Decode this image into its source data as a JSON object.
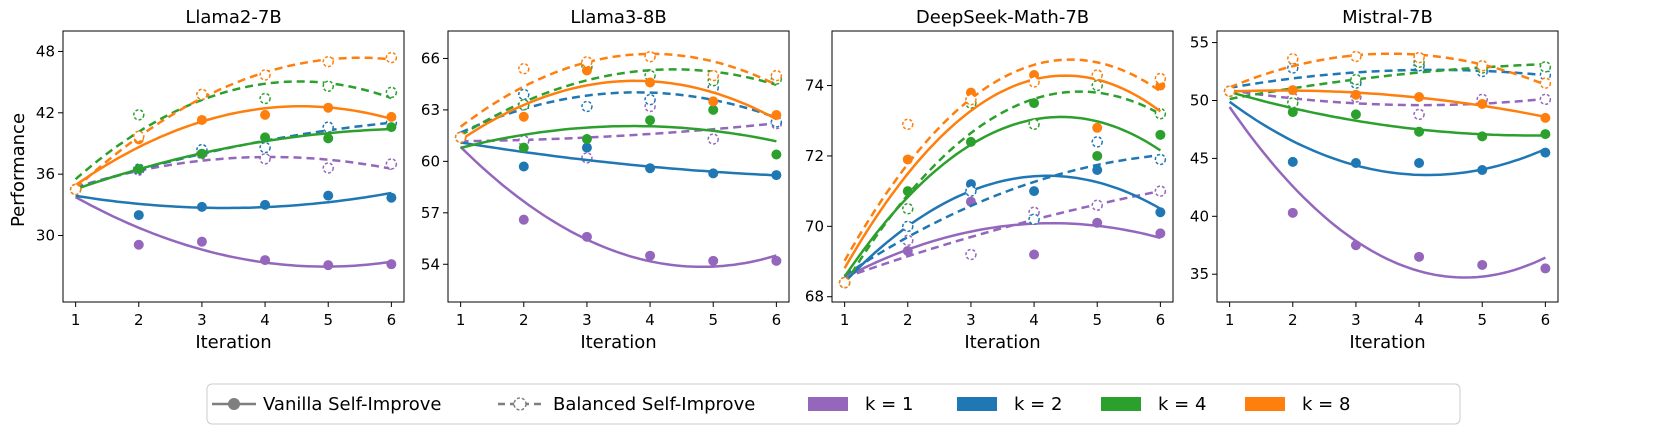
{
  "colors": {
    "k1": "#9467bd",
    "k2": "#1f77b4",
    "k4": "#2ca02c",
    "k8": "#ff7f0e",
    "neutral": "#7f7f7f"
  },
  "legend": {
    "vanilla": "Vanilla Self-Improve",
    "balanced": "Balanced Self-Improve",
    "k1": "k = 1",
    "k2": "k = 2",
    "k4": "k = 4",
    "k8": "k = 8"
  },
  "chart_data": [
    {
      "type": "scatter",
      "title": "Llama2-7B",
      "xlabel": "Iteration",
      "ylabel": "Performance",
      "x": [
        1,
        2,
        3,
        4,
        5,
        6
      ],
      "xlim": [
        0.8,
        6.2
      ],
      "ylim": [
        23.5,
        50
      ],
      "yticks": [
        30,
        36,
        42,
        48
      ],
      "series": [
        {
          "key": "k1",
          "name": "k = 1",
          "style": "vanilla",
          "values": [
            34.5,
            29.1,
            29.4,
            27.6,
            27.1,
            27.2
          ]
        },
        {
          "key": "k1",
          "name": "k = 1",
          "style": "balanced",
          "values": [
            34.5,
            36.4,
            38.0,
            37.5,
            36.6,
            37.0
          ]
        },
        {
          "key": "k2",
          "name": "k = 2",
          "style": "vanilla",
          "values": [
            34.5,
            32.0,
            32.8,
            33.0,
            33.9,
            33.7
          ]
        },
        {
          "key": "k2",
          "name": "k = 2",
          "style": "balanced",
          "values": [
            34.5,
            36.5,
            38.4,
            38.6,
            40.6,
            41.0
          ]
        },
        {
          "key": "k4",
          "name": "k = 4",
          "style": "vanilla",
          "values": [
            34.5,
            36.5,
            38.0,
            39.6,
            39.5,
            40.6
          ]
        },
        {
          "key": "k4",
          "name": "k = 4",
          "style": "balanced",
          "values": [
            34.5,
            41.8,
            43.8,
            43.4,
            44.6,
            44.0
          ]
        },
        {
          "key": "k8",
          "name": "k = 8",
          "style": "vanilla",
          "values": [
            34.5,
            39.4,
            41.3,
            41.8,
            42.5,
            41.6
          ]
        },
        {
          "key": "k8",
          "name": "k = 8",
          "style": "balanced",
          "values": [
            34.5,
            39.7,
            43.8,
            45.7,
            47.0,
            47.4
          ]
        }
      ]
    },
    {
      "type": "scatter",
      "title": "Llama3-8B",
      "xlabel": "Iteration",
      "ylabel": "",
      "x": [
        1,
        2,
        3,
        4,
        5,
        6
      ],
      "xlim": [
        0.8,
        6.2
      ],
      "ylim": [
        51.8,
        67.6
      ],
      "yticks": [
        54,
        57,
        60,
        63,
        66
      ],
      "series": [
        {
          "key": "k1",
          "name": "k = 1",
          "style": "vanilla",
          "values": [
            61.4,
            56.6,
            55.6,
            54.5,
            54.2,
            54.2
          ]
        },
        {
          "key": "k1",
          "name": "k = 1",
          "style": "balanced",
          "values": [
            61.4,
            61.2,
            60.2,
            63.2,
            61.3,
            62.2
          ]
        },
        {
          "key": "k2",
          "name": "k = 2",
          "style": "vanilla",
          "values": [
            61.4,
            59.7,
            60.8,
            59.6,
            59.3,
            59.2
          ]
        },
        {
          "key": "k2",
          "name": "k = 2",
          "style": "balanced",
          "values": [
            61.4,
            63.9,
            63.2,
            63.6,
            64.3,
            62.3
          ]
        },
        {
          "key": "k4",
          "name": "k = 4",
          "style": "vanilla",
          "values": [
            61.4,
            60.8,
            61.3,
            62.4,
            63.0,
            60.4
          ]
        },
        {
          "key": "k4",
          "name": "k = 4",
          "style": "balanced",
          "values": [
            61.4,
            63.3,
            65.5,
            65.0,
            64.7,
            64.8
          ]
        },
        {
          "key": "k8",
          "name": "k = 8",
          "style": "vanilla",
          "values": [
            61.4,
            62.6,
            65.3,
            64.6,
            63.5,
            62.7
          ]
        },
        {
          "key": "k8",
          "name": "k = 8",
          "style": "balanced",
          "values": [
            61.4,
            65.4,
            65.8,
            66.1,
            65.0,
            65.0
          ]
        }
      ]
    },
    {
      "type": "scatter",
      "title": "DeepSeek-Math-7B",
      "xlabel": "Iteration",
      "ylabel": "",
      "x": [
        1,
        2,
        3,
        4,
        5,
        6
      ],
      "xlim": [
        0.8,
        6.2
      ],
      "ylim": [
        67.85,
        75.55
      ],
      "yticks": [
        68,
        70,
        72,
        74
      ],
      "series": [
        {
          "key": "k1",
          "name": "k = 1",
          "style": "vanilla",
          "values": [
            68.4,
            69.3,
            70.7,
            69.2,
            70.1,
            69.8
          ]
        },
        {
          "key": "k1",
          "name": "k = 1",
          "style": "balanced",
          "values": [
            68.4,
            69.6,
            69.2,
            70.4,
            70.6,
            71.0
          ]
        },
        {
          "key": "k2",
          "name": "k = 2",
          "style": "vanilla",
          "values": [
            68.4,
            70.0,
            71.2,
            71.0,
            71.6,
            70.4
          ]
        },
        {
          "key": "k2",
          "name": "k = 2",
          "style": "balanced",
          "values": [
            68.4,
            70.0,
            71.0,
            70.2,
            72.4,
            71.9
          ]
        },
        {
          "key": "k4",
          "name": "k = 4",
          "style": "vanilla",
          "values": [
            68.4,
            71.0,
            72.4,
            73.5,
            72.0,
            72.6
          ]
        },
        {
          "key": "k4",
          "name": "k = 4",
          "style": "balanced",
          "values": [
            68.4,
            70.5,
            73.5,
            72.9,
            74.0,
            73.2
          ]
        },
        {
          "key": "k8",
          "name": "k = 8",
          "style": "vanilla",
          "values": [
            68.4,
            71.9,
            73.8,
            74.3,
            72.8,
            74.0
          ]
        },
        {
          "key": "k8",
          "name": "k = 8",
          "style": "balanced",
          "values": [
            68.4,
            72.9,
            73.6,
            74.1,
            74.3,
            74.2
          ]
        }
      ]
    },
    {
      "type": "scatter",
      "title": "Mistral-7B",
      "xlabel": "Iteration",
      "ylabel": "",
      "x": [
        1,
        2,
        3,
        4,
        5,
        6
      ],
      "xlim": [
        0.8,
        6.2
      ],
      "ylim": [
        32.6,
        56.0
      ],
      "yticks": [
        35,
        40,
        45,
        50,
        55
      ],
      "series": [
        {
          "key": "k1",
          "name": "k = 1",
          "style": "vanilla",
          "values": [
            50.8,
            40.3,
            37.5,
            36.5,
            35.8,
            35.5
          ]
        },
        {
          "key": "k1",
          "name": "k = 1",
          "style": "balanced",
          "values": [
            50.8,
            50.2,
            50.3,
            48.8,
            50.1,
            50.1
          ]
        },
        {
          "key": "k2",
          "name": "k = 2",
          "style": "vanilla",
          "values": [
            50.8,
            44.7,
            44.6,
            44.6,
            44.0,
            45.5
          ]
        },
        {
          "key": "k2",
          "name": "k = 2",
          "style": "balanced",
          "values": [
            50.8,
            52.8,
            51.5,
            53.0,
            52.5,
            52.2
          ]
        },
        {
          "key": "k4",
          "name": "k = 4",
          "style": "vanilla",
          "values": [
            50.8,
            49.0,
            48.8,
            47.3,
            46.9,
            47.1
          ]
        },
        {
          "key": "k4",
          "name": "k = 4",
          "style": "balanced",
          "values": [
            50.8,
            49.8,
            51.8,
            53.3,
            52.8,
            52.9
          ]
        },
        {
          "key": "k8",
          "name": "k = 8",
          "style": "vanilla",
          "values": [
            50.8,
            50.9,
            50.5,
            50.3,
            49.7,
            48.5
          ]
        },
        {
          "key": "k8",
          "name": "k = 8",
          "style": "balanced",
          "values": [
            50.8,
            53.6,
            53.8,
            53.7,
            53.0,
            51.5
          ]
        }
      ]
    }
  ]
}
